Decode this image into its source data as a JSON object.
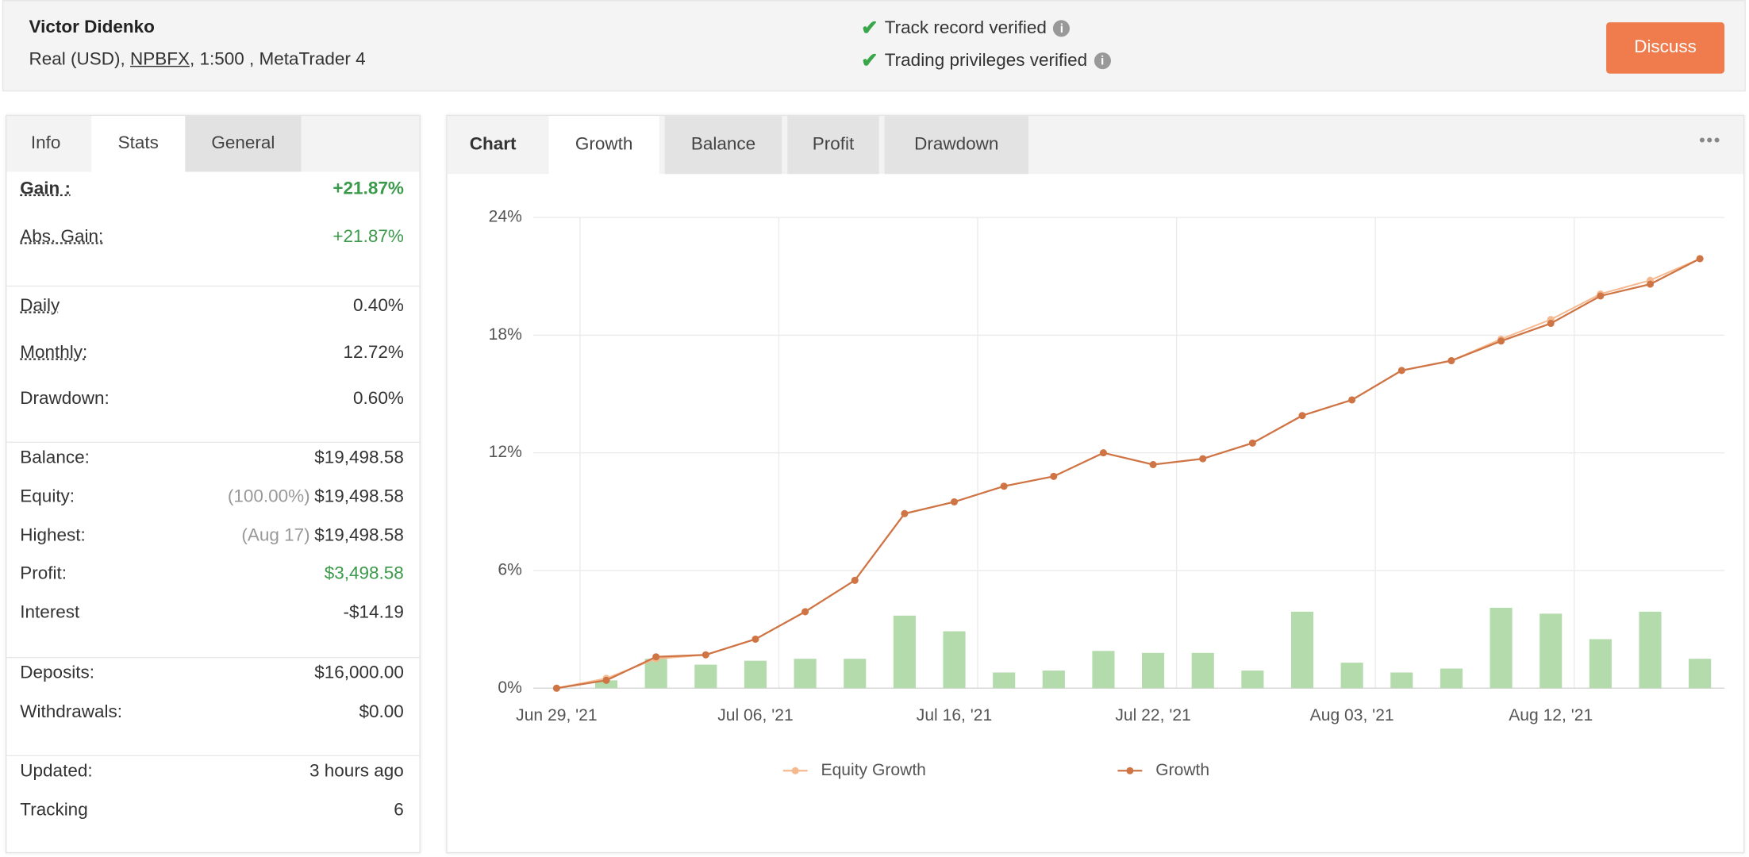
{
  "header": {
    "name": "Victor Didenko",
    "account": [
      "Real (USD), ",
      "NPBFX",
      ", 1:500 , MetaTrader 4"
    ],
    "verified": [
      "Track record verified",
      "Trading privileges verified"
    ],
    "button": "Discuss"
  },
  "stats_panel": {
    "tabs": [
      "Info",
      "Stats",
      "General"
    ],
    "groups": [
      [
        {
          "label": "Gain :",
          "value": "+21.87%"
        },
        {
          "label": "Abs. Gain:",
          "value": "+21.87%"
        }
      ],
      [
        {
          "label": "Daily",
          "value": "0.40%"
        },
        {
          "label": "Monthly:",
          "value": "12.72%"
        },
        {
          "label": "Drawdown:",
          "value": "0.60%"
        }
      ],
      [
        {
          "label": "Balance:",
          "value": "$19,498.58"
        },
        {
          "label": "Equity:",
          "note": "(100.00%)",
          "value": "$19,498.58"
        },
        {
          "label": "Highest:",
          "note": "(Aug 17)",
          "value": "$19,498.58"
        },
        {
          "label": "Profit:",
          "value": "$3,498.58"
        },
        {
          "label": "Interest",
          "value": "-$14.19"
        }
      ],
      [
        {
          "label": "Deposits:",
          "value": "$16,000.00"
        },
        {
          "label": "Withdrawals:",
          "value": "$0.00"
        }
      ],
      [
        {
          "label": "Updated:",
          "value": "3 hours ago"
        },
        {
          "label": "Tracking",
          "value": "6"
        }
      ]
    ]
  },
  "chart_panel": {
    "label": "Chart",
    "tabs": [
      "Growth",
      "Balance",
      "Profit",
      "Drawdown"
    ]
  },
  "chart_data": {
    "type": "line",
    "categories": [
      "Jun 29, '21",
      null,
      null,
      null,
      "Jul 06, '21",
      null,
      null,
      null,
      "Jul 16, '21",
      null,
      null,
      null,
      "Jul 22, '21",
      null,
      null,
      null,
      "Aug 03, '21",
      null,
      null,
      null,
      "Aug 12, '21",
      null,
      null,
      null
    ],
    "series": [
      {
        "name": "Equity Growth",
        "color": "#f5b990",
        "values": [
          0,
          0.5,
          1.5,
          1.7,
          2.5,
          3.9,
          5.5,
          8.9,
          9.5,
          10.3,
          10.8,
          12.0,
          11.4,
          11.7,
          12.5,
          13.9,
          14.7,
          16.2,
          16.7,
          17.8,
          18.8,
          20.1,
          20.8,
          21.9
        ]
      },
      {
        "name": "Growth",
        "color": "#cf7444",
        "values": [
          0,
          0.4,
          1.6,
          1.7,
          2.5,
          3.9,
          5.5,
          8.9,
          9.5,
          10.3,
          10.8,
          12.0,
          11.4,
          11.7,
          12.5,
          13.9,
          14.7,
          16.2,
          16.7,
          17.7,
          18.6,
          20.0,
          20.6,
          21.9
        ]
      },
      {
        "type": "bar",
        "color": "#b3dbac",
        "values": [
          null,
          0.4,
          1.5,
          1.2,
          1.4,
          1.5,
          1.5,
          3.7,
          2.9,
          0.8,
          0.9,
          1.9,
          1.8,
          1.8,
          0.9,
          3.9,
          1.3,
          0.8,
          1.0,
          4.1,
          3.8,
          2.5,
          3.9,
          1.5
        ]
      }
    ],
    "ylim": [
      0,
      24
    ],
    "yticks": [
      {
        "value": 0,
        "label": "0%"
      },
      {
        "value": 6,
        "label": "6%"
      },
      {
        "value": 12,
        "label": "12%"
      },
      {
        "value": 18,
        "label": "18%"
      },
      {
        "value": 24,
        "label": "24%"
      }
    ],
    "grid": true
  }
}
